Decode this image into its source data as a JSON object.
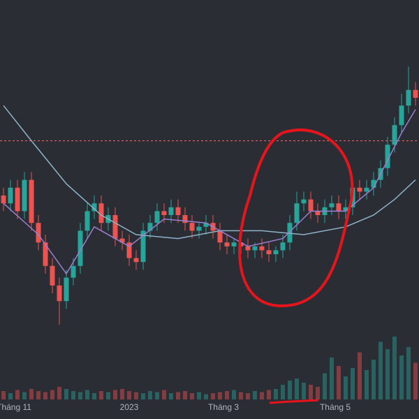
{
  "chart_data": {
    "type": "candlestick",
    "open": [
      50,
      48,
      52,
      46,
      54,
      43,
      38,
      32,
      27,
      23,
      29,
      32,
      41,
      46,
      48,
      43,
      45,
      39,
      38,
      34,
      33,
      41,
      43,
      46,
      45,
      47,
      45,
      43,
      41,
      42,
      43,
      41,
      38,
      37,
      38,
      37,
      36,
      37,
      36,
      35,
      36,
      38,
      43,
      48,
      49,
      46,
      45,
      47,
      48,
      46,
      47,
      52,
      51,
      52,
      54,
      57,
      63,
      68,
      73,
      77
    ],
    "high": [
      52,
      54,
      54,
      56,
      56,
      45,
      40,
      34,
      29,
      31,
      34,
      43,
      48,
      50,
      50,
      47,
      47,
      41,
      40,
      36,
      43,
      45,
      48,
      48,
      49,
      49,
      47,
      45,
      43,
      45,
      45,
      43,
      40,
      39,
      40,
      39,
      38,
      39,
      38,
      37,
      40,
      45,
      51,
      51,
      51,
      48,
      49,
      50,
      50,
      49,
      54,
      54,
      54,
      56,
      59,
      65,
      70,
      76,
      83,
      79
    ],
    "low": [
      46,
      46,
      44,
      44,
      41,
      36,
      30,
      25,
      17,
      21,
      27,
      30,
      39,
      44,
      41,
      41,
      37,
      36,
      32,
      31,
      31,
      39,
      41,
      43,
      43,
      43,
      41,
      39,
      39,
      40,
      39,
      36,
      35,
      35,
      35,
      34,
      34,
      34,
      33,
      33,
      34,
      36,
      41,
      46,
      44,
      43,
      43,
      45,
      44,
      44,
      45,
      49,
      49,
      50,
      52,
      55,
      61,
      66,
      71,
      73
    ],
    "close": [
      48,
      52,
      46,
      54,
      43,
      38,
      32,
      27,
      23,
      29,
      32,
      41,
      46,
      48,
      43,
      45,
      39,
      38,
      34,
      33,
      41,
      43,
      46,
      45,
      47,
      45,
      43,
      41,
      42,
      43,
      41,
      38,
      37,
      38,
      37,
      36,
      37,
      36,
      35,
      36,
      38,
      43,
      48,
      49,
      46,
      45,
      47,
      48,
      46,
      47,
      52,
      51,
      52,
      54,
      57,
      63,
      68,
      73,
      77,
      75
    ],
    "volume": [
      8,
      6,
      9,
      7,
      10,
      8,
      7,
      9,
      12,
      10,
      8,
      7,
      9,
      6,
      8,
      7,
      9,
      10,
      8,
      7,
      6,
      8,
      7,
      9,
      6,
      7,
      8,
      6,
      7,
      5,
      6,
      7,
      8,
      9,
      7,
      6,
      8,
      7,
      9,
      10,
      14,
      18,
      20,
      16,
      14,
      12,
      25,
      40,
      32,
      22,
      30,
      45,
      28,
      38,
      55,
      48,
      60,
      42,
      50,
      35
    ],
    "up_color": "#26a69a",
    "down_color": "#ef5350",
    "lines": [
      {
        "color": "#8fb3c9",
        "x": [
          0,
          4,
          9,
          14,
          19,
          25,
          31,
          37,
          43,
          49,
          53,
          56,
          59
        ],
        "values": [
          73,
          64,
          53,
          45,
          40,
          39,
          41,
          41,
          40,
          42,
          45,
          49,
          54
        ]
      },
      {
        "color": "#9c7fd1",
        "x": [
          0,
          5,
          9,
          13,
          18,
          23,
          29,
          35,
          40,
          44,
          49,
          53,
          57,
          59
        ],
        "values": [
          48,
          40,
          30,
          42,
          37,
          44,
          43,
          37,
          39,
          46,
          46,
          52,
          66,
          72
        ]
      }
    ],
    "ref_line": 64,
    "ref_color": "#e57373",
    "ylim": [
      0,
      100
    ],
    "vlim": [
      0,
      100
    ],
    "xlabels": [
      {
        "value": 1.5,
        "label": "Tháng 11"
      },
      {
        "value": 18,
        "label": "2023"
      },
      {
        "value": 31.5,
        "label": "Tháng 3"
      },
      {
        "value": 47.5,
        "label": "Tháng 5"
      }
    ]
  }
}
